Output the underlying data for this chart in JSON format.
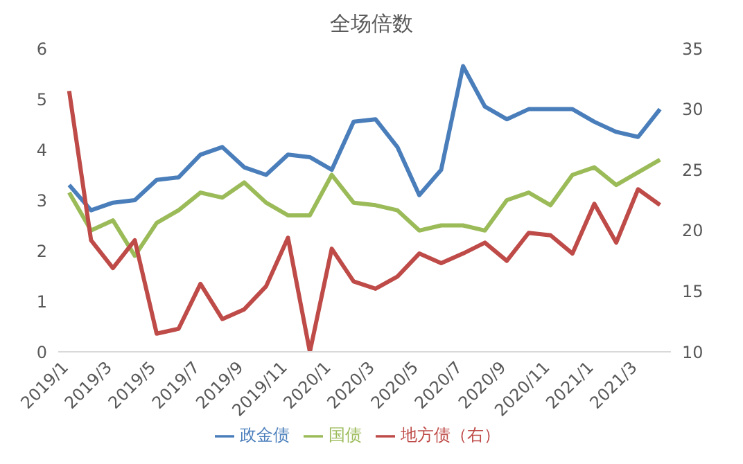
{
  "chart_data": {
    "type": "line",
    "title": "全场倍数",
    "categories": [
      "2019/1",
      null,
      "2019/3",
      null,
      "2019/5",
      null,
      "2019/7",
      null,
      "2019/9",
      null,
      "2019/11",
      null,
      "2020/1",
      null,
      "2020/3",
      null,
      "2020/5",
      null,
      "2020/7",
      null,
      "2020/9",
      null,
      "2020/11",
      null,
      "2021/1",
      null,
      "2021/3",
      null
    ],
    "series": [
      {
        "name": "政金债",
        "color": "#4a7ebb",
        "values": [
          3.3,
          2.8,
          2.95,
          3.0,
          3.4,
          3.45,
          3.9,
          4.05,
          3.65,
          3.5,
          3.9,
          3.85,
          3.6,
          4.55,
          4.6,
          4.05,
          3.1,
          3.6,
          5.65,
          4.85,
          4.6,
          4.8,
          4.8,
          4.8,
          4.55,
          4.35,
          4.25,
          4.8
        ]
      },
      {
        "name": "国债",
        "color": "#9bbb59",
        "values": [
          3.15,
          2.4,
          2.6,
          1.9,
          2.55,
          2.8,
          3.15,
          3.05,
          3.35,
          2.95,
          2.7,
          2.7,
          3.5,
          2.95,
          2.9,
          2.8,
          2.4,
          2.5,
          2.5,
          2.4,
          3.0,
          3.15,
          2.9,
          3.5,
          3.65,
          3.3,
          3.55,
          3.8
        ]
      },
      {
        "name": "地方债（右）",
        "color": "#be4b48",
        "axis": "y2",
        "values": [
          31.5,
          19.2,
          16.9,
          19.2,
          11.5,
          11.9,
          15.6,
          12.7,
          13.5,
          15.4,
          19.4,
          10,
          18.5,
          15.8,
          15.2,
          16.2,
          18.1,
          17.3,
          18.1,
          19.0,
          17.5,
          19.8,
          19.6,
          18.1,
          22.2,
          19.0,
          23.4,
          22.1
        ]
      }
    ],
    "ylim": [
      0,
      6
    ],
    "yticks": [
      0,
      1,
      2,
      3,
      4,
      5,
      6
    ],
    "y2lim": [
      10,
      35
    ],
    "y2ticks": [
      10,
      15,
      20,
      25,
      30,
      35
    ],
    "grid": false,
    "legend": "bottom",
    "marker": "none",
    "line_style": "solid"
  }
}
